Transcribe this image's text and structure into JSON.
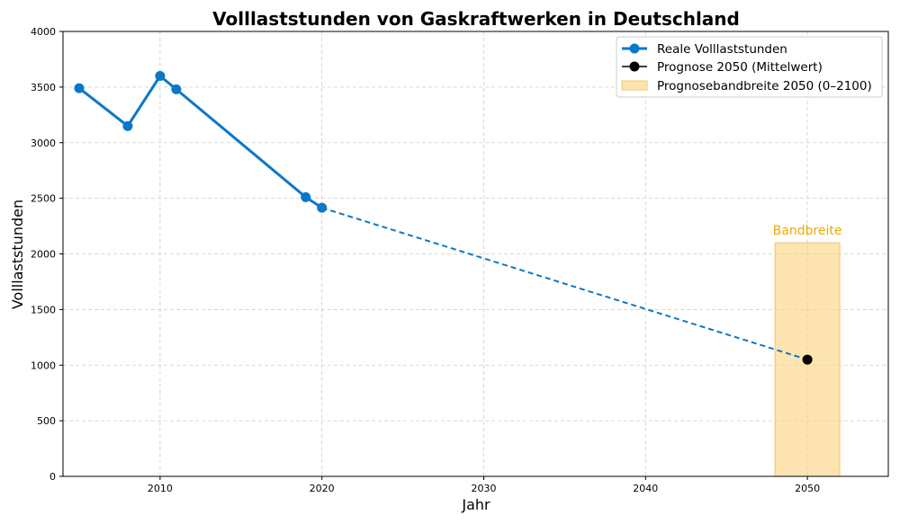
{
  "chart_data": {
    "type": "line",
    "title": "Volllaststunden von Gaskraftwerken in Deutschland",
    "xlabel": "Jahr",
    "ylabel": "Volllaststunden",
    "xlim": [
      2004,
      2055
    ],
    "ylim": [
      0,
      4000
    ],
    "xticks": [
      2010,
      2020,
      2030,
      2040,
      2050
    ],
    "yticks": [
      0,
      500,
      1000,
      1500,
      2000,
      2500,
      3000,
      3500,
      4000
    ],
    "grid": true,
    "legend_position": "top-right",
    "series": [
      {
        "name": "Reale Volllaststunden",
        "style": "solid-line-with-markers",
        "color": "#0a78c8",
        "x": [
          2005,
          2008,
          2010,
          2011,
          2019,
          2020
        ],
        "y": [
          3490,
          3150,
          3600,
          3480,
          2510,
          2415
        ]
      },
      {
        "name": "Prognose 2050 (Mittelwert)",
        "style": "marker",
        "color": "#000000",
        "x": [
          2050
        ],
        "y": [
          1050
        ]
      }
    ],
    "trend_line": {
      "style": "dashed",
      "color": "#0a78c8",
      "x": [
        2020,
        2050
      ],
      "y": [
        2415,
        1050
      ]
    },
    "band": {
      "name": "Prognosebandbreite 2050 (0–2100)",
      "color": "#fcd27d",
      "x_range": [
        2048,
        2052
      ],
      "y_range": [
        0,
        2100
      ],
      "annotation": "Bandbreite",
      "annotation_color": "#f0a800"
    }
  }
}
